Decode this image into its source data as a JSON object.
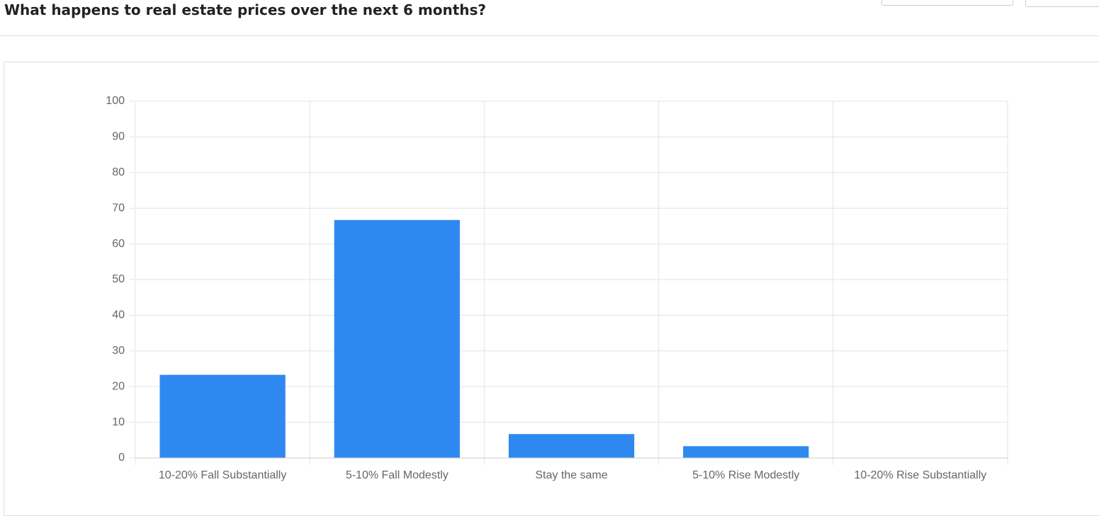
{
  "chart_data": {
    "type": "bar",
    "title": "What happens to real estate prices over the next 6 months?",
    "categories": [
      "10-20% Fall Substantially",
      "5-10% Fall Modestly",
      "Stay the same",
      "5-10% Rise Modestly",
      "10-20% Rise Substantially"
    ],
    "values": [
      23.3,
      66.7,
      6.7,
      3.3,
      0
    ],
    "color": "#2e88f0",
    "ylim": [
      0,
      100
    ],
    "yticks": [
      0,
      10,
      20,
      30,
      40,
      50,
      60,
      70,
      80,
      90,
      100
    ],
    "grid": true
  }
}
